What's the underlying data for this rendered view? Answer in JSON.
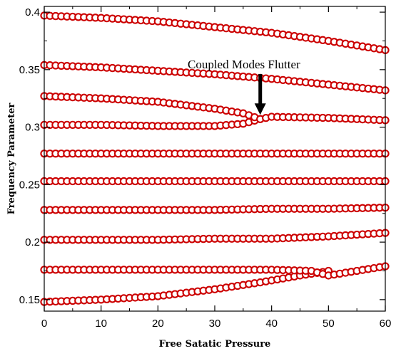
{
  "chart_data": {
    "type": "scatter",
    "title": "",
    "xlabel": "Free Satatic Pressure",
    "ylabel": "Frequency Parameter",
    "xlim": [
      0,
      60
    ],
    "ylim": [
      0.14,
      0.405
    ],
    "xticks": [
      0,
      10,
      20,
      30,
      40,
      50,
      60
    ],
    "xtick_labels": [
      "0",
      "10",
      "20",
      "30",
      "40",
      "50",
      "60"
    ],
    "yticks": [
      0.15,
      0.2,
      0.25,
      0.3,
      0.35,
      0.4
    ],
    "ytick_labels": [
      "0.15",
      "0.2",
      "0.25",
      "0.3",
      "0.35",
      "0.4"
    ],
    "grid": false,
    "legend": "none",
    "marker_color": "#cc0000",
    "marker": "hollow-circle",
    "x_range": [
      0,
      60
    ],
    "points_per_series": 61,
    "series": [
      {
        "curve": [
          [
            0,
            0.148
          ],
          [
            10,
            0.15
          ],
          [
            20,
            0.153
          ],
          [
            30,
            0.159
          ],
          [
            38,
            0.165
          ],
          [
            45,
            0.171
          ],
          [
            49,
            0.174
          ],
          [
            50,
            0.175
          ]
        ]
      },
      {
        "curve": [
          [
            0,
            0.176
          ],
          [
            10,
            0.176
          ],
          [
            20,
            0.176
          ],
          [
            30,
            0.176
          ],
          [
            40,
            0.176
          ],
          [
            47,
            0.175
          ],
          [
            50,
            0.171
          ],
          [
            55,
            0.175
          ],
          [
            60,
            0.179
          ]
        ]
      },
      {
        "curve": [
          [
            0,
            0.202
          ],
          [
            10,
            0.202
          ],
          [
            20,
            0.202
          ],
          [
            30,
            0.203
          ],
          [
            40,
            0.203
          ],
          [
            50,
            0.205
          ],
          [
            60,
            0.208
          ]
        ]
      },
      {
        "curve": [
          [
            0,
            0.228
          ],
          [
            10,
            0.228
          ],
          [
            20,
            0.228
          ],
          [
            30,
            0.228
          ],
          [
            40,
            0.229
          ],
          [
            50,
            0.229
          ],
          [
            60,
            0.23
          ]
        ]
      },
      {
        "curve": [
          [
            0,
            0.253
          ],
          [
            10,
            0.253
          ],
          [
            20,
            0.253
          ],
          [
            30,
            0.253
          ],
          [
            40,
            0.253
          ],
          [
            50,
            0.253
          ],
          [
            60,
            0.253
          ]
        ]
      },
      {
        "curve": [
          [
            0,
            0.277
          ],
          [
            10,
            0.277
          ],
          [
            20,
            0.277
          ],
          [
            30,
            0.277
          ],
          [
            40,
            0.277
          ],
          [
            50,
            0.277
          ],
          [
            60,
            0.277
          ]
        ]
      },
      {
        "curve": [
          [
            0,
            0.302
          ],
          [
            10,
            0.302
          ],
          [
            20,
            0.301
          ],
          [
            30,
            0.301
          ],
          [
            35,
            0.303
          ],
          [
            38,
            0.307
          ]
        ]
      },
      {
        "curve": [
          [
            0,
            0.327
          ],
          [
            10,
            0.325
          ],
          [
            20,
            0.322
          ],
          [
            30,
            0.316
          ],
          [
            35,
            0.312
          ],
          [
            38,
            0.307
          ],
          [
            40,
            0.309
          ],
          [
            50,
            0.308
          ],
          [
            60,
            0.306
          ]
        ]
      },
      {
        "curve": [
          [
            0,
            0.354
          ],
          [
            10,
            0.352
          ],
          [
            20,
            0.349
          ],
          [
            30,
            0.346
          ],
          [
            40,
            0.342
          ],
          [
            50,
            0.337
          ],
          [
            60,
            0.332
          ]
        ]
      },
      {
        "curve": [
          [
            0,
            0.397
          ],
          [
            10,
            0.395
          ],
          [
            20,
            0.392
          ],
          [
            30,
            0.387
          ],
          [
            40,
            0.382
          ],
          [
            50,
            0.375
          ],
          [
            60,
            0.367
          ]
        ]
      }
    ],
    "annotations": [
      {
        "text": "Coupled Modes Flutter",
        "arrow_to": [
          38,
          0.307
        ]
      }
    ]
  }
}
